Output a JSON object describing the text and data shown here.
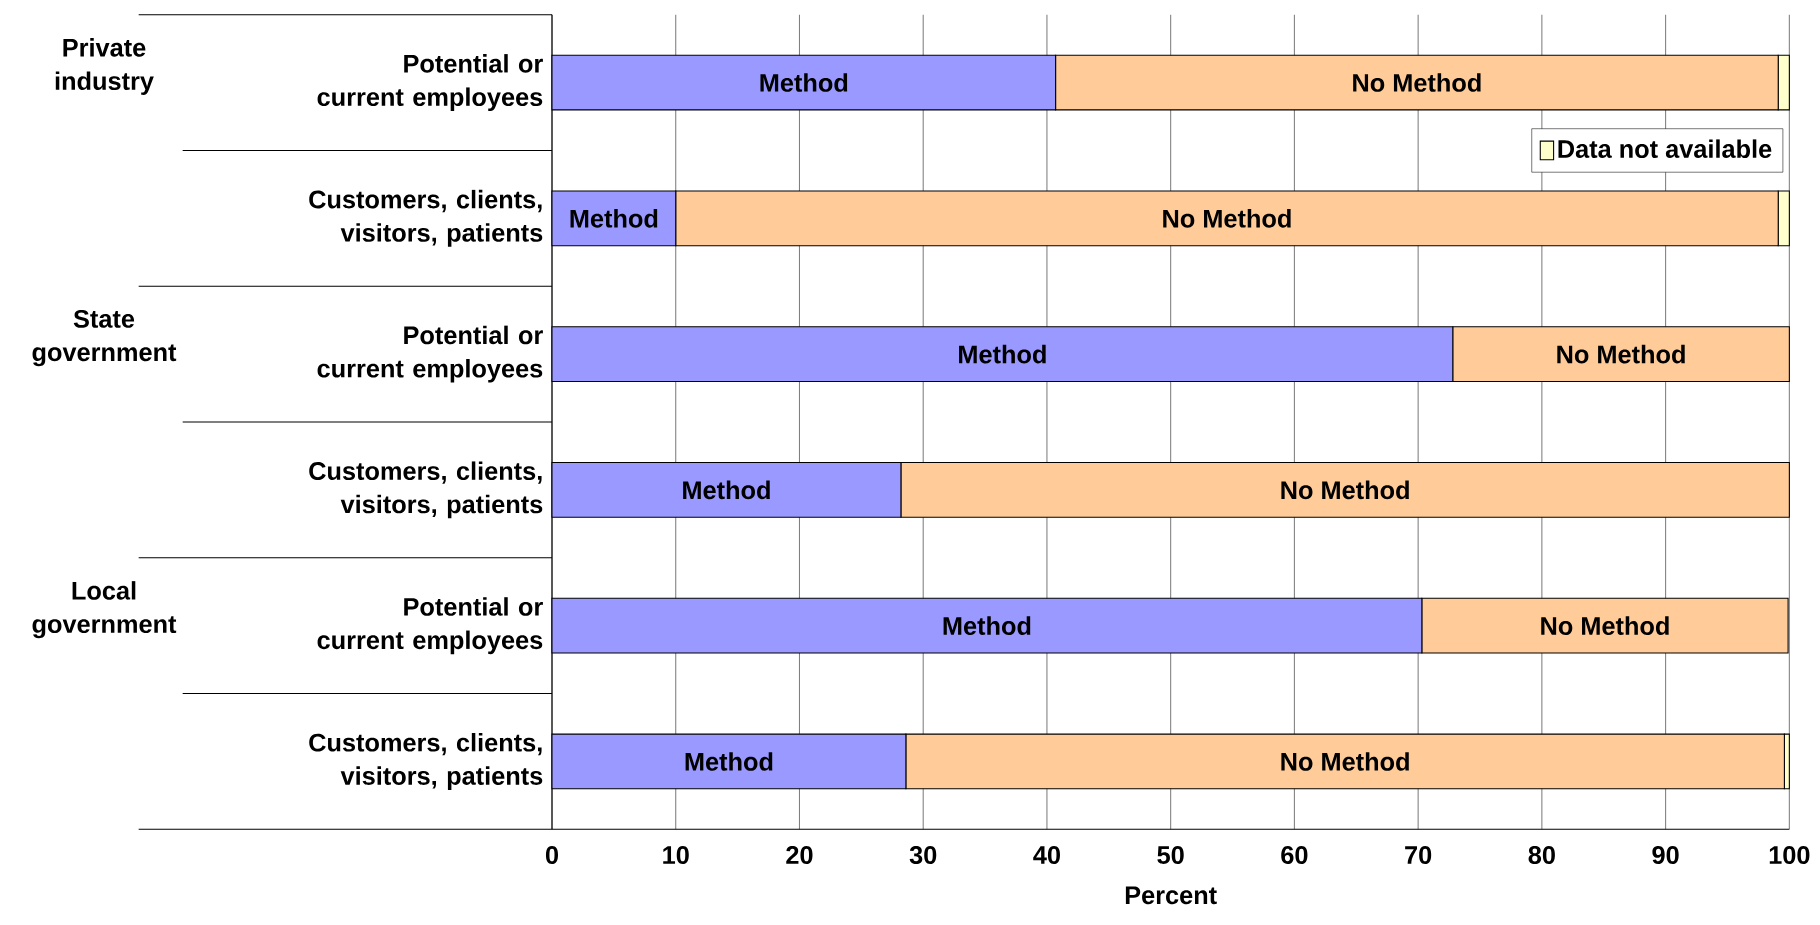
{
  "chart_data": {
    "type": "bar",
    "orientation": "horizontal",
    "stacked": true,
    "categories": [
      "Potential or current employees",
      "Customers, clients, visitors, patients",
      "Potential or current employees",
      "Customers, clients, visitors, patients",
      "Potential or current employees",
      "Customers, clients, visitors, patients"
    ],
    "series": [
      {
        "name": "Method",
        "color": "#9999ff",
        "values": [
          40.7,
          10.0,
          72.8,
          28.2,
          70.3,
          28.6
        ]
      },
      {
        "name": "No Method",
        "color": "#ffcc99",
        "values": [
          58.4,
          89.1,
          27.2,
          71.8,
          29.6,
          71.0
        ]
      },
      {
        "name": "Data not available",
        "color": "#ffffcc",
        "values": [
          0.9,
          0.9,
          0,
          0,
          null,
          0.4
        ]
      }
    ],
    "xlim": [
      0,
      100
    ],
    "xticks": [
      0,
      10,
      20,
      30,
      40,
      50,
      60,
      70,
      80,
      90,
      100
    ],
    "xlabel": "Percent",
    "grid": "x",
    "legend": "top right",
    "annotations": [
      "Private industry",
      "State government",
      "Local government"
    ]
  }
}
